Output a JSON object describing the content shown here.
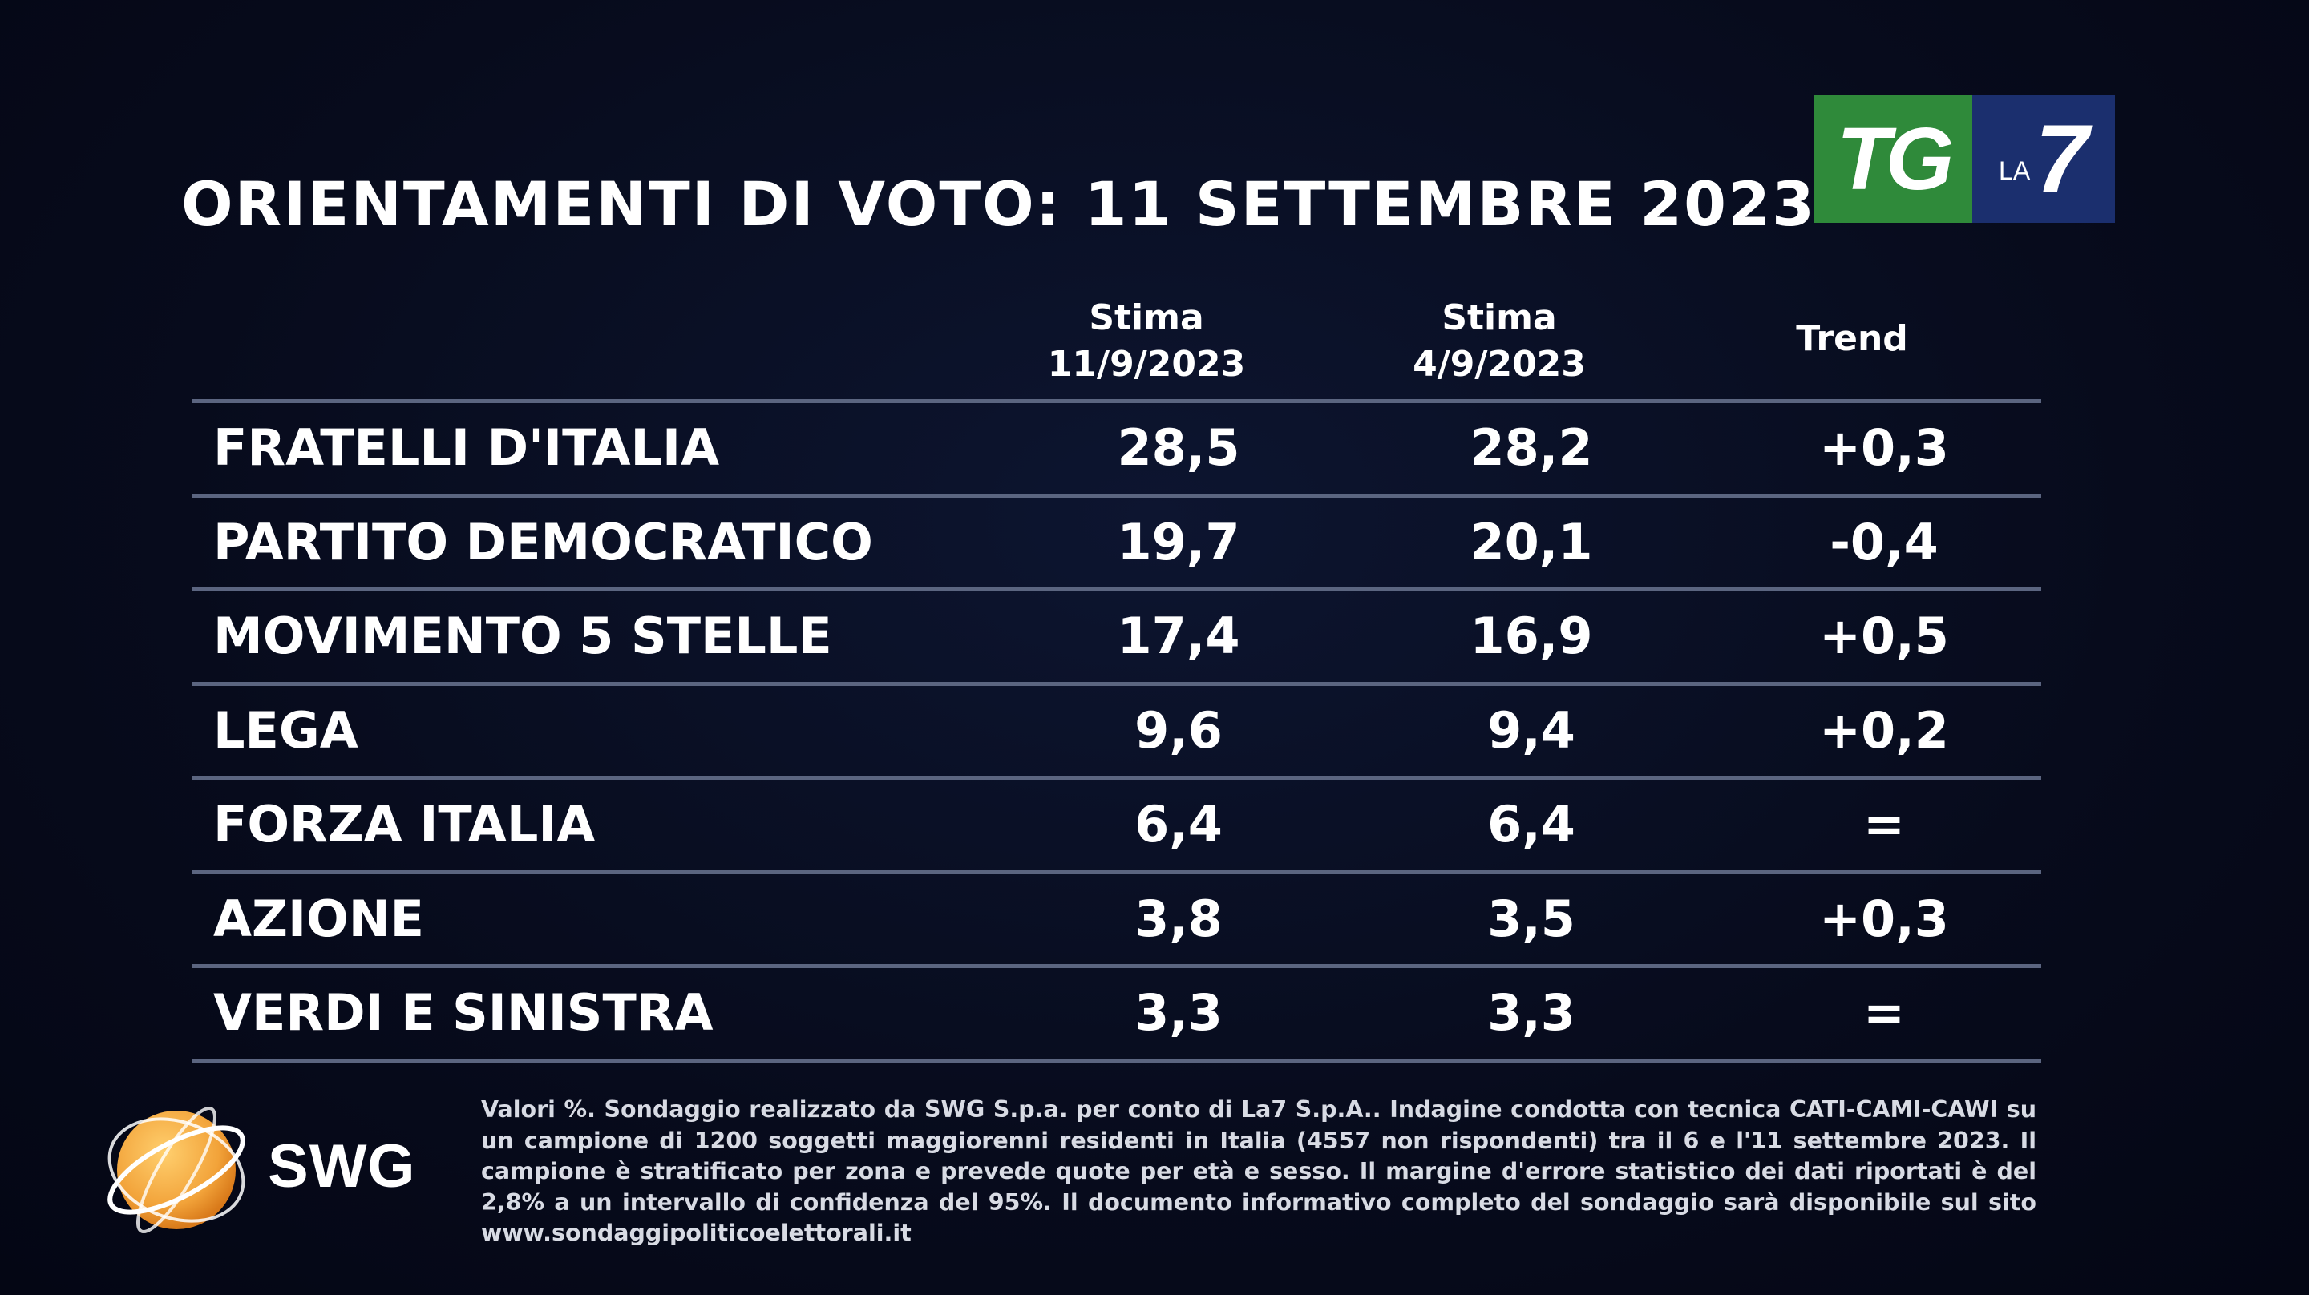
{
  "title": "ORIENTAMENTI DI VOTO: 11 SETTEMBRE 2023",
  "logo": {
    "tg": "TG",
    "la": "LA",
    "seven": "7"
  },
  "swg_logo": "SWG",
  "colors": {
    "background": "#070b1c",
    "tg_green": "#2f8a3a",
    "la7_blue": "#1b2f6e",
    "swg_orange": "#f2a33a",
    "row_divider": "#5b6580"
  },
  "chart_data": {
    "type": "table",
    "columns": [
      {
        "line1": "Stima",
        "line2": "11/9/2023"
      },
      {
        "line1": "Stima",
        "line2": "4/9/2023"
      },
      {
        "line1": "Trend",
        "line2": ""
      }
    ],
    "rows": [
      {
        "party": "FRATELLI D'ITALIA",
        "stima_11_9": "28,5",
        "stima_4_9": "28,2",
        "trend": "+0,3"
      },
      {
        "party": "PARTITO DEMOCRATICO",
        "stima_11_9": "19,7",
        "stima_4_9": "20,1",
        "trend": "-0,4"
      },
      {
        "party": "MOVIMENTO 5 STELLE",
        "stima_11_9": "17,4",
        "stima_4_9": "16,9",
        "trend": "+0,5"
      },
      {
        "party": "LEGA",
        "stima_11_9": "9,6",
        "stima_4_9": "9,4",
        "trend": "+0,2"
      },
      {
        "party": "FORZA ITALIA",
        "stima_11_9": "6,4",
        "stima_4_9": "6,4",
        "trend": "="
      },
      {
        "party": "AZIONE",
        "stima_11_9": "3,8",
        "stima_4_9": "3,5",
        "trend": "+0,3"
      },
      {
        "party": "VERDI E SINISTRA",
        "stima_11_9": "3,3",
        "stima_4_9": "3,3",
        "trend": "="
      }
    ]
  },
  "footnote": "Valori %. Sondaggio realizzato da SWG S.p.a. per conto di La7 S.p.A.. Indagine condotta con tecnica CATI-CAMI-CAWI su un campione di 1200 soggetti maggiorenni residenti in Italia (4557 non rispondenti) tra il 6 e l'11 settembre 2023. Il campione è stratificato per zona e prevede quote per età e sesso. Il margine d'errore statistico dei dati riportati è del 2,8% a un intervallo di confidenza del 95%. Il documento informativo completo del sondaggio sarà disponibile sul sito www.sondaggipoliticoelettorali.it"
}
